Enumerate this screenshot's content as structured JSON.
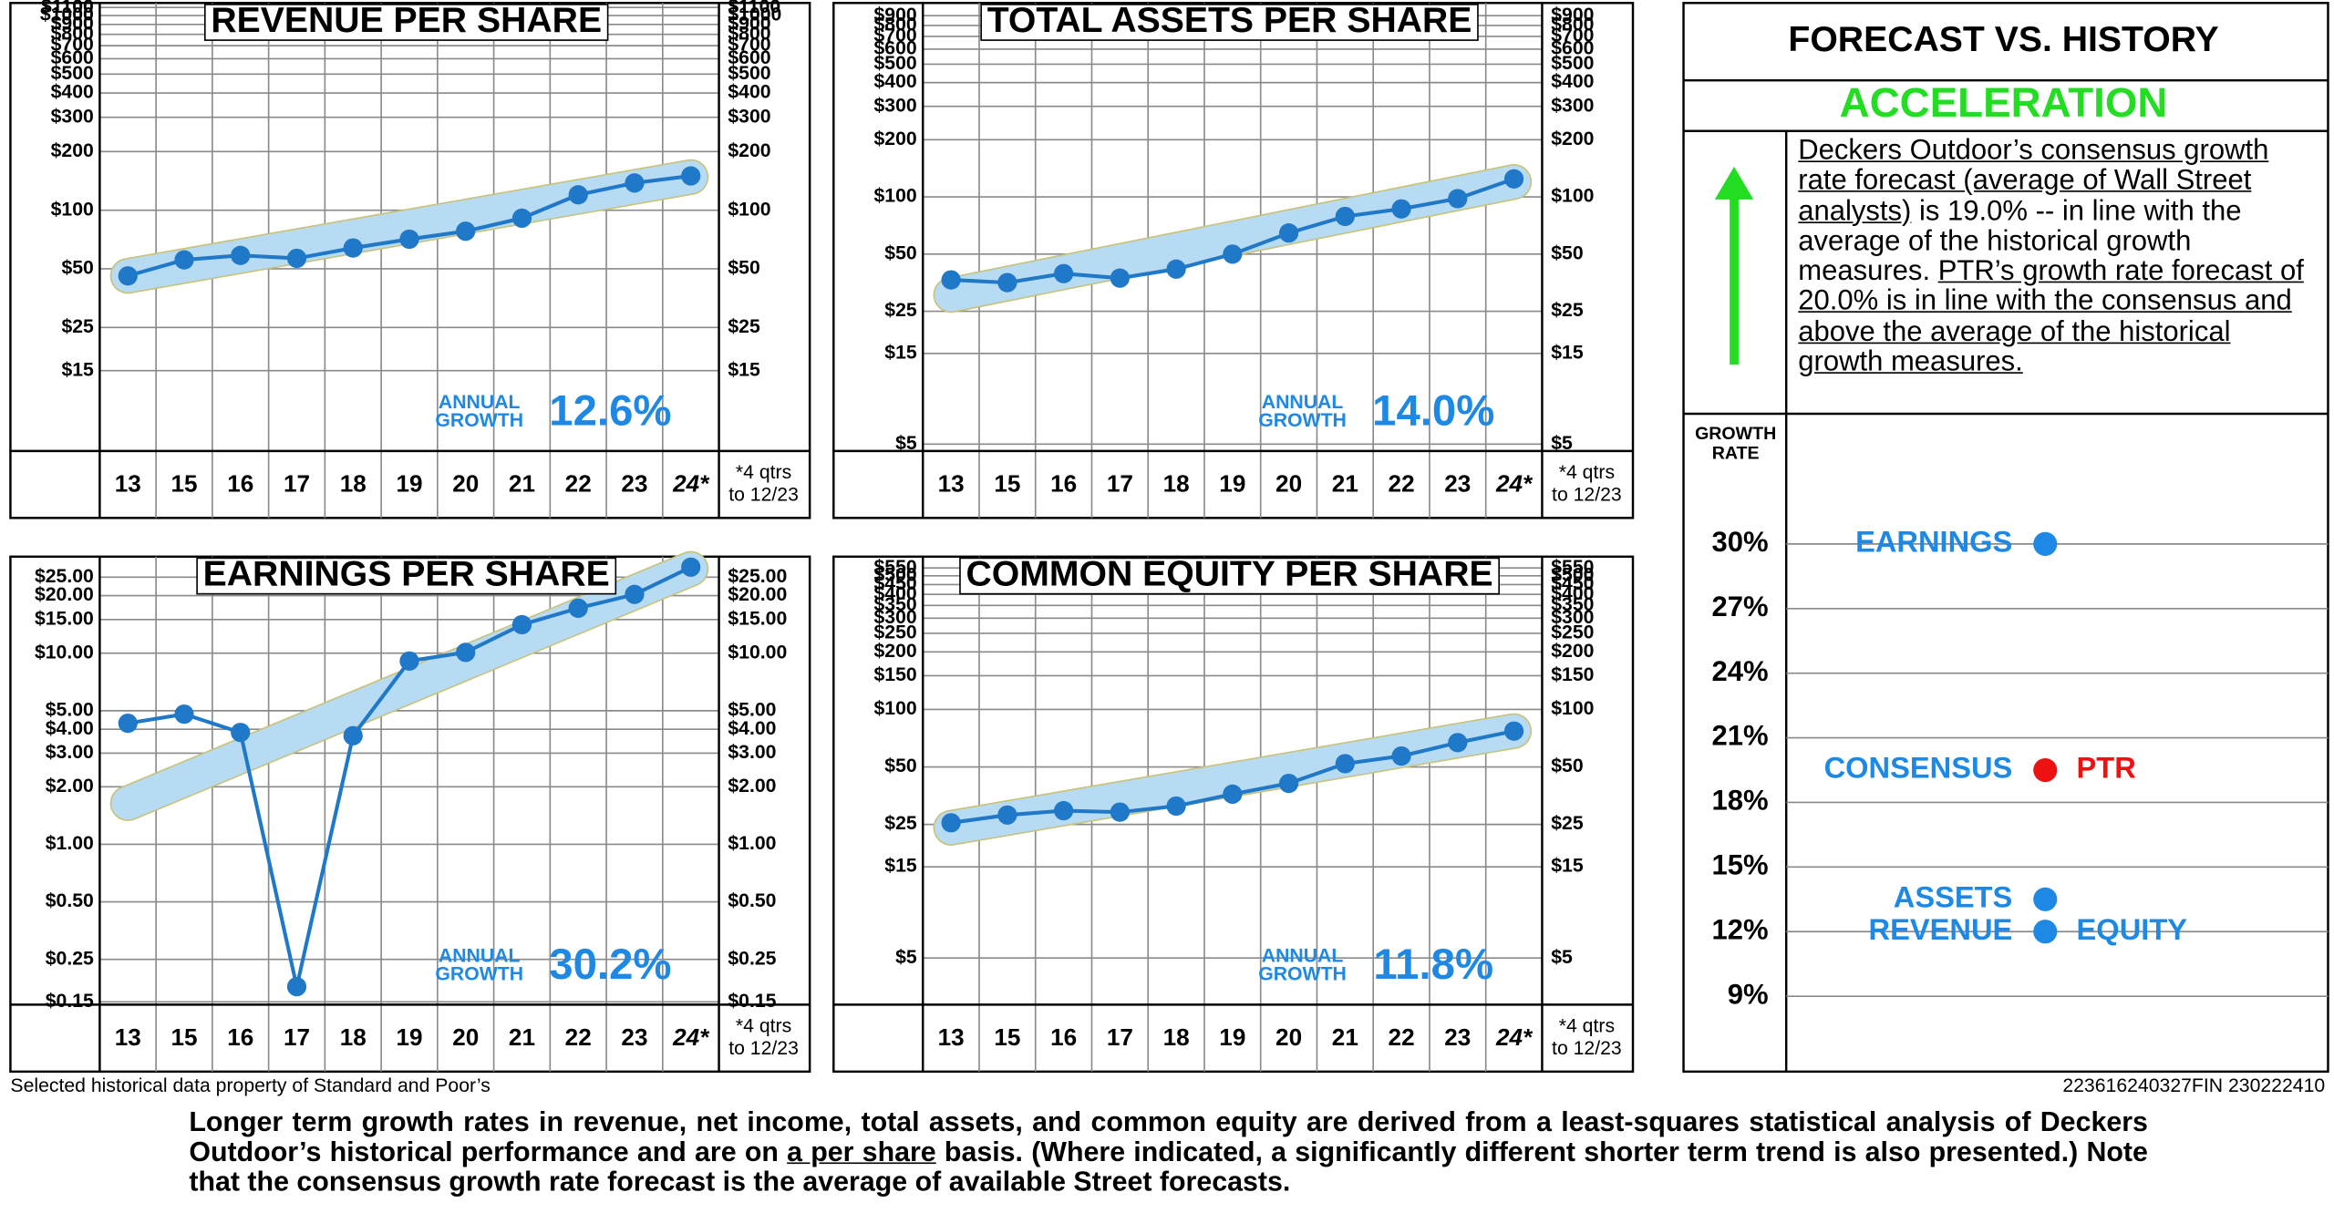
{
  "chart_data": [
    {
      "type": "line",
      "title": "REVENUE PER SHARE",
      "yscale": "log",
      "grid": true,
      "categories": [
        "13",
        "15",
        "16",
        "17",
        "18",
        "19",
        "20",
        "21",
        "22",
        "23",
        "24*"
      ],
      "series": [
        {
          "color": "#1f78c8",
          "values": [
            46,
            55.6,
            58.6,
            56.6,
            64,
            71,
            78,
            91,
            120,
            138,
            150
          ]
        }
      ],
      "trend": {
        "color": "#b8dbf4",
        "edge": "#c9c27a",
        "values": [
          46,
          148
        ]
      },
      "ylim": [
        5.8,
        1160
      ],
      "yticks": [
        {
          "value": 15,
          "label": "$15"
        },
        {
          "value": 25,
          "label": "$25"
        },
        {
          "value": 50,
          "label": "$50"
        },
        {
          "value": 100,
          "label": "$100"
        },
        {
          "value": 200,
          "label": "$200"
        },
        {
          "value": 300,
          "label": "$300"
        },
        {
          "value": 400,
          "label": "$400"
        },
        {
          "value": 500,
          "label": "$500"
        },
        {
          "value": 600,
          "label": "$600"
        },
        {
          "value": 700,
          "label": "$700"
        },
        {
          "value": 800,
          "label": "$800"
        },
        {
          "value": 900,
          "label": "$900"
        },
        {
          "value": 1000,
          "label": "$1000"
        },
        {
          "value": 1100,
          "label": "$1100"
        }
      ],
      "annotation": {
        "label_lines": [
          "ANNUAL",
          "GROWTH"
        ],
        "value": "12.6%",
        "color": "#1e88e5"
      },
      "footnote": [
        "*4 qtrs",
        "to 12/23"
      ]
    },
    {
      "type": "line",
      "title": "TOTAL ASSETS PER SHARE",
      "yscale": "log",
      "grid": true,
      "categories": [
        "13",
        "15",
        "16",
        "17",
        "18",
        "19",
        "20",
        "21",
        "22",
        "23",
        "24*"
      ],
      "series": [
        {
          "color": "#1f78c8",
          "values": [
            36.6,
            35.4,
            39.5,
            37.4,
            41.7,
            50,
            64.6,
            79,
            86.5,
            98,
            124.5
          ]
        }
      ],
      "trend": {
        "color": "#b8dbf4",
        "edge": "#c9c27a",
        "values": [
          30.5,
          120
        ]
      },
      "ylim": [
        4.6,
        1050
      ],
      "yticks": [
        {
          "value": 5,
          "label": "$5"
        },
        {
          "value": 15,
          "label": "$15"
        },
        {
          "value": 25,
          "label": "$25"
        },
        {
          "value": 50,
          "label": "$50"
        },
        {
          "value": 100,
          "label": "$100"
        },
        {
          "value": 200,
          "label": "$200"
        },
        {
          "value": 300,
          "label": "$300"
        },
        {
          "value": 400,
          "label": "$400"
        },
        {
          "value": 500,
          "label": "$500"
        },
        {
          "value": 600,
          "label": "$600"
        },
        {
          "value": 700,
          "label": "$700"
        },
        {
          "value": 800,
          "label": "$800"
        },
        {
          "value": 900,
          "label": "$900"
        }
      ],
      "annotation": {
        "label_lines": [
          "ANNUAL",
          "GROWTH"
        ],
        "value": "14.0%",
        "color": "#1e88e5"
      },
      "footnote": [
        "*4 qtrs",
        "to 12/23"
      ]
    },
    {
      "type": "line",
      "title": "EARNINGS PER SHARE",
      "yscale": "log",
      "grid": true,
      "categories": [
        "13",
        "15",
        "16",
        "17",
        "18",
        "19",
        "20",
        "21",
        "22",
        "23",
        "24*"
      ],
      "series": [
        {
          "color": "#1f78c8",
          "values": [
            4.3,
            4.8,
            3.85,
            0.18,
            3.7,
            9.1,
            10.1,
            14.1,
            17.2,
            20.3,
            28.2
          ]
        }
      ],
      "trend": {
        "color": "#b8dbf4",
        "edge": "#c9c27a",
        "values": [
          1.64,
          27.6
        ]
      },
      "ylim": [
        0.145,
        32
      ],
      "yticks": [
        {
          "value": 0.15,
          "label": "$0.15"
        },
        {
          "value": 0.25,
          "label": "$0.25"
        },
        {
          "value": 0.5,
          "label": "$0.50"
        },
        {
          "value": 1,
          "label": "$1.00"
        },
        {
          "value": 2,
          "label": "$2.00"
        },
        {
          "value": 3,
          "label": "$3.00"
        },
        {
          "value": 4,
          "label": "$4.00"
        },
        {
          "value": 5,
          "label": "$5.00"
        },
        {
          "value": 10,
          "label": "$10.00"
        },
        {
          "value": 15,
          "label": "$15.00"
        },
        {
          "value": 20,
          "label": "$20.00"
        },
        {
          "value": 25,
          "label": "$25.00"
        }
      ],
      "annotation": {
        "label_lines": [
          "ANNUAL",
          "GROWTH"
        ],
        "value": "30.2%",
        "color": "#1e88e5"
      },
      "footnote": [
        "*4 qtrs",
        "to 12/23"
      ]
    },
    {
      "type": "line",
      "title": "COMMON EQUITY PER SHARE",
      "yscale": "log",
      "grid": true,
      "categories": [
        "13",
        "15",
        "16",
        "17",
        "18",
        "19",
        "20",
        "21",
        "22",
        "23",
        "24*"
      ],
      "series": [
        {
          "color": "#1f78c8",
          "values": [
            25.5,
            28,
            29.5,
            29,
            31.2,
            36,
            41,
            52,
            57,
            67,
            77
          ]
        }
      ],
      "trend": {
        "color": "#b8dbf4",
        "edge": "#c9c27a",
        "values": [
          24,
          77
        ]
      },
      "ylim": [
        2.85,
        630
      ],
      "yticks": [
        {
          "value": 5,
          "label": "$5"
        },
        {
          "value": 15,
          "label": "$15"
        },
        {
          "value": 25,
          "label": "$25"
        },
        {
          "value": 50,
          "label": "$50"
        },
        {
          "value": 100,
          "label": "$100"
        },
        {
          "value": 150,
          "label": "$150"
        },
        {
          "value": 200,
          "label": "$200"
        },
        {
          "value": 250,
          "label": "$250"
        },
        {
          "value": 300,
          "label": "$300"
        },
        {
          "value": 350,
          "label": "$350"
        },
        {
          "value": 400,
          "label": "$400"
        },
        {
          "value": 450,
          "label": "$450"
        },
        {
          "value": 500,
          "label": "$500"
        },
        {
          "value": 550,
          "label": "$550"
        }
      ],
      "annotation": {
        "label_lines": [
          "ANNUAL",
          "GROWTH"
        ],
        "value": "11.8%",
        "color": "#1e88e5"
      },
      "footnote": [
        "*4 qtrs",
        "to 12/23"
      ]
    },
    {
      "type": "dot",
      "title": "FORECAST VS. HISTORY",
      "subtitle": "ACCELERATION",
      "subtitle_color": "#22dd22",
      "paragraph": [
        {
          "text": "Deckers Outdoor’s consensus growth rate forecast (average of Wall Street analysts)",
          "underline": true
        },
        {
          "text": " is 19.0% -- in line with the average of the historical growth measures. ",
          "underline": false
        },
        {
          "text": "PTR’s growth rate forecast of 20.0% is in line with the consensus and above the average of the historical growth measures.",
          "underline": true
        }
      ],
      "ylabel": [
        "GROWTH",
        "RATE"
      ],
      "grid": true,
      "ylim": [
        5.5,
        35.7
      ],
      "yticks": [
        {
          "value": 9,
          "label": "9%"
        },
        {
          "value": 12,
          "label": "12%"
        },
        {
          "value": 15,
          "label": "15%"
        },
        {
          "value": 18,
          "label": "18%"
        },
        {
          "value": 21,
          "label": "21%"
        },
        {
          "value": 24,
          "label": "24%"
        },
        {
          "value": 27,
          "label": "27%"
        },
        {
          "value": 30,
          "label": "30%"
        }
      ],
      "points": [
        {
          "label": "EARNINGS",
          "value": 30,
          "color": "#1e88e5"
        },
        {
          "label": "CONSENSUS",
          "label_right": "PTR",
          "value": 19.5,
          "color": "#ee1111",
          "label_right_color": "#ee1111"
        },
        {
          "label": "ASSETS",
          "value": 13.5,
          "color": "#1e88e5"
        },
        {
          "label": "REVENUE",
          "label_right": "EQUITY",
          "value": 12,
          "color": "#1e88e5",
          "label_right_color": "#1e88e5"
        }
      ]
    }
  ],
  "source": "Selected historical data property of Standard and Poor’s",
  "code": "223616240327FIN 230222410",
  "footer": [
    {
      "text": "Longer term growth rates in revenue, net income, total assets, and common equity are derived from a least-squares  statistical analysis of Deckers Outdoor’s historical performance and are on ",
      "underline": false
    },
    {
      "text": "a per share",
      "underline": true
    },
    {
      "text": " basis. (Where indicated, a significantly different shorter term trend is also presented.) Note that the consensus growth rate forecast is the average of available Street forecasts.",
      "underline": false
    }
  ]
}
